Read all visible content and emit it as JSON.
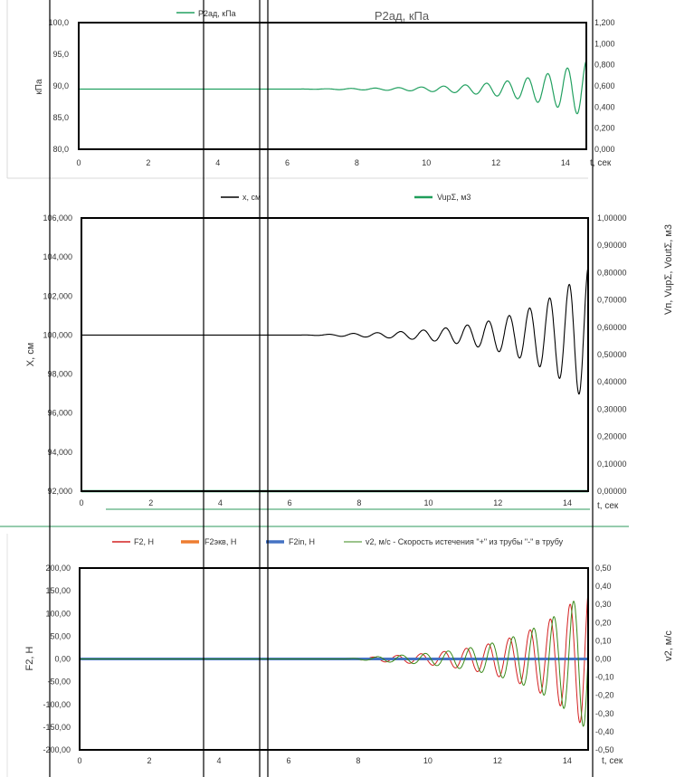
{
  "colors": {
    "frame": "#000000",
    "grid_line": "#000000",
    "p2": "#22a060",
    "x": "#000000",
    "vup": "#1f9e5a",
    "f2": "#d42020",
    "f2ekv": "#ed7d31",
    "f2in": "#4472c4",
    "v2": "#3a8a1a",
    "divider": "#2e9a5c",
    "tick": "#333333"
  },
  "chart_data": [
    {
      "type": "line",
      "title": "P2ад, кПа",
      "xlabel": "t, сек",
      "ylabel": "кПа",
      "xlim": [
        0,
        14.6
      ],
      "ylim": [
        80,
        100
      ],
      "y2lim": [
        0,
        1.2
      ],
      "x_ticks": [
        "0",
        "2",
        "4",
        "6",
        "8",
        "10",
        "12",
        "14"
      ],
      "y_ticks": [
        "80,0",
        "85,0",
        "90,0",
        "95,0",
        "100,0"
      ],
      "y2_ticks": [
        "0,000",
        "0,200",
        "0,400",
        "0,600",
        "0,800",
        "1,000",
        "1,200"
      ],
      "legend": "top-left",
      "series": [
        {
          "name": "P2ад, кПа",
          "baseline": 89.5,
          "start_t": 6.2,
          "growth": 0.55,
          "amp_end": 4.5,
          "period_start": 0.75,
          "period_end": 0.55
        }
      ]
    },
    {
      "type": "line",
      "xlabel": "t, сек",
      "ylabel": "X, см",
      "y2label": "Vп, VupΣ, VoutΣ, м3",
      "xlim": [
        0,
        14.6
      ],
      "ylim": [
        92,
        106
      ],
      "y2lim": [
        0,
        1
      ],
      "x_ticks": [
        "0",
        "2",
        "4",
        "6",
        "8",
        "10",
        "12",
        "14"
      ],
      "y_ticks": [
        "92,000",
        "94,000",
        "96,000",
        "98,000",
        "100,000",
        "102,000",
        "104,000",
        "106,000"
      ],
      "y2_ticks": [
        "0,00000",
        "0,10000",
        "0,20000",
        "0,30000",
        "0,40000",
        "0,50000",
        "0,60000",
        "0,70000",
        "0,80000",
        "0,90000",
        "1,00000"
      ],
      "legend": "top",
      "series": [
        {
          "name": "x, см",
          "baseline": 100,
          "start_t": 6.2,
          "growth": 0.55,
          "amp_end": 3.5,
          "period_start": 0.75,
          "period_end": 0.55
        },
        {
          "name": "VupΣ, м3",
          "constant": 0
        }
      ]
    },
    {
      "type": "line",
      "xlabel": "t, сек",
      "ylabel": "F2, Н",
      "y2label": "v2, м/с",
      "xlim": [
        0,
        14.6
      ],
      "ylim": [
        -200,
        200
      ],
      "y2lim": [
        -0.5,
        0.5
      ],
      "x_ticks": [
        "0",
        "2",
        "4",
        "6",
        "8",
        "10",
        "12",
        "14"
      ],
      "y_ticks": [
        "-200,00",
        "-150,00",
        "-100,00",
        "-50,00",
        "0,00",
        "50,00",
        "100,00",
        "150,00",
        "200,00"
      ],
      "y2_ticks": [
        "-0,50",
        "-0,40",
        "-0,30",
        "-0,20",
        "-0,10",
        "0,00",
        "0,10",
        "0,20",
        "0,30",
        "0,40",
        "0,50"
      ],
      "legend": "top",
      "series": [
        {
          "name": "F2, Н",
          "baseline": 0,
          "start_t": 7.5,
          "growth": 0.55,
          "amp_end": 160,
          "period_start": 0.75,
          "period_end": 0.55
        },
        {
          "name": "F2экв, Н",
          "constant": 0
        },
        {
          "name": "F2in, Н",
          "constant": 0
        },
        {
          "name": "v2, м/с - Скорость истечения \"+\" из трубы \"-\" в трубу",
          "baseline": 0,
          "start_t": 7.5,
          "growth": 0.55,
          "amp_end": 0.4,
          "period_start": 0.75,
          "period_end": 0.55,
          "phase_lag": 0.18
        }
      ]
    }
  ]
}
